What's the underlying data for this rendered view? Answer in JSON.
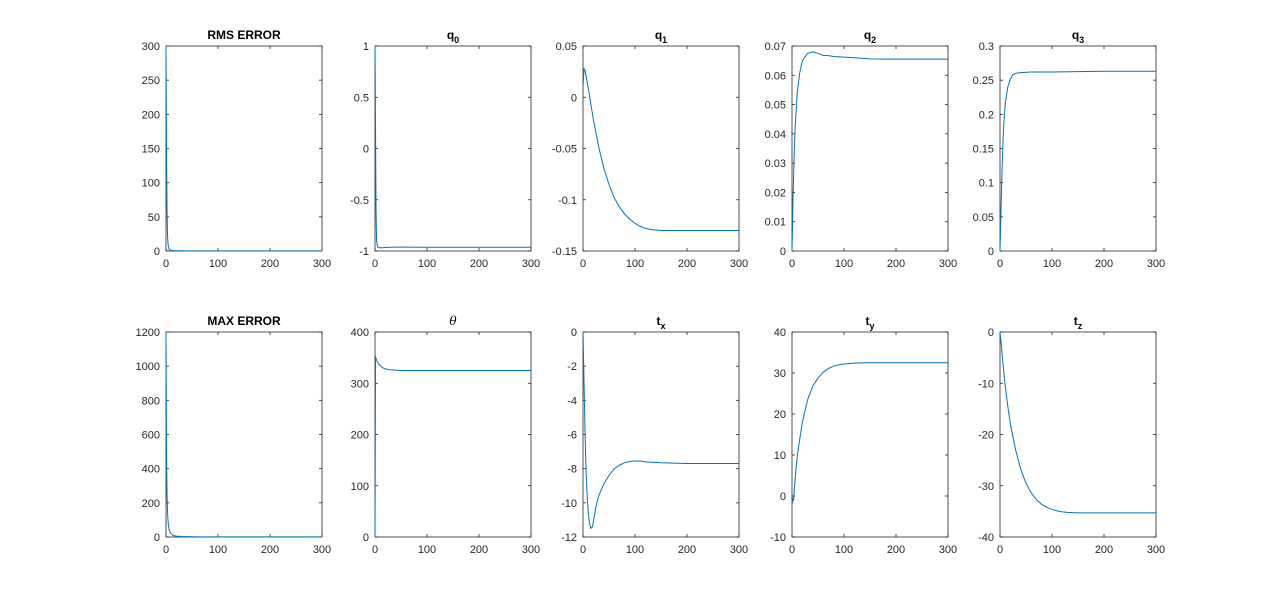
{
  "chart_data": [
    {
      "type": "line",
      "title": "RMS ERROR",
      "title_symbol": "",
      "title_subscript": "",
      "xlim": [
        0,
        300
      ],
      "ylim": [
        0,
        300
      ],
      "xticks": [
        "0",
        "100",
        "200",
        "300"
      ],
      "yticks": [
        "0",
        "50",
        "100",
        "150",
        "200",
        "250",
        "300"
      ],
      "grid": false,
      "series": [
        {
          "color": "#0072BD",
          "x": [
            0,
            1,
            2,
            3,
            4,
            5,
            6,
            8,
            10,
            15,
            20,
            30,
            40,
            60,
            100,
            200,
            300
          ],
          "y": [
            300,
            150,
            60,
            22,
            10,
            5,
            3,
            1.5,
            1,
            0.6,
            0.4,
            0.3,
            0.2,
            0.2,
            0.2,
            0.2,
            0.2
          ]
        }
      ]
    },
    {
      "type": "line",
      "title": "q",
      "title_symbol": "",
      "title_subscript": "0",
      "xlim": [
        0,
        300
      ],
      "ylim": [
        -1,
        1
      ],
      "xticks": [
        "0",
        "100",
        "200",
        "300"
      ],
      "yticks": [
        "-1",
        "-0.5",
        "0",
        "0.5",
        "1"
      ],
      "grid": false,
      "series": [
        {
          "color": "#0072BD",
          "x": [
            0,
            1,
            2,
            3,
            5,
            10,
            20,
            40,
            60,
            100,
            200,
            300
          ],
          "y": [
            1,
            0.2,
            -0.6,
            -0.9,
            -0.96,
            -0.97,
            -0.965,
            -0.962,
            -0.962,
            -0.963,
            -0.963,
            -0.963
          ]
        }
      ]
    },
    {
      "type": "line",
      "title": "q",
      "title_symbol": "",
      "title_subscript": "1",
      "xlim": [
        0,
        300
      ],
      "ylim": [
        -0.15,
        0.05
      ],
      "xticks": [
        "0",
        "100",
        "200",
        "300"
      ],
      "yticks": [
        "-0.15",
        "-0.1",
        "-0.05",
        "0",
        "0.05"
      ],
      "grid": false,
      "series": [
        {
          "color": "#0072BD",
          "x": [
            0,
            2,
            4,
            8,
            12,
            20,
            30,
            40,
            50,
            60,
            70,
            80,
            90,
            100,
            110,
            120,
            130,
            150,
            200,
            300
          ],
          "y": [
            0.01,
            0.028,
            0.026,
            0.015,
            0.003,
            -0.022,
            -0.048,
            -0.069,
            -0.085,
            -0.098,
            -0.107,
            -0.114,
            -0.119,
            -0.123,
            -0.126,
            -0.128,
            -0.129,
            -0.13,
            -0.13,
            -0.13
          ]
        }
      ]
    },
    {
      "type": "line",
      "title": "q",
      "title_symbol": "",
      "title_subscript": "2",
      "xlim": [
        0,
        300
      ],
      "ylim": [
        0,
        0.07
      ],
      "xticks": [
        "0",
        "100",
        "200",
        "300"
      ],
      "yticks": [
        "0",
        "0.01",
        "0.02",
        "0.03",
        "0.04",
        "0.05",
        "0.06",
        "0.07"
      ],
      "grid": false,
      "series": [
        {
          "color": "#0072BD",
          "x": [
            0,
            2,
            4,
            6,
            10,
            15,
            20,
            30,
            40,
            50,
            60,
            70,
            80,
            100,
            120,
            150,
            200,
            300
          ],
          "y": [
            0,
            0.018,
            0.032,
            0.042,
            0.054,
            0.061,
            0.065,
            0.0675,
            0.068,
            0.0675,
            0.0668,
            0.0667,
            0.0664,
            0.0662,
            0.066,
            0.0656,
            0.0655,
            0.0655
          ]
        }
      ]
    },
    {
      "type": "line",
      "title": "q",
      "title_symbol": "",
      "title_subscript": "3",
      "xlim": [
        0,
        300
      ],
      "ylim": [
        0,
        0.3
      ],
      "xticks": [
        "0",
        "100",
        "200",
        "300"
      ],
      "yticks": [
        "0",
        "0.05",
        "0.1",
        "0.15",
        "0.2",
        "0.25",
        "0.3"
      ],
      "grid": false,
      "series": [
        {
          "color": "#0072BD",
          "x": [
            0,
            2,
            4,
            6,
            8,
            10,
            15,
            20,
            25,
            30,
            40,
            60,
            100,
            200,
            300
          ],
          "y": [
            0,
            0.06,
            0.12,
            0.165,
            0.195,
            0.215,
            0.24,
            0.252,
            0.258,
            0.26,
            0.261,
            0.262,
            0.262,
            0.263,
            0.263
          ]
        }
      ]
    },
    {
      "type": "line",
      "title": "MAX ERROR",
      "title_symbol": "",
      "title_subscript": "",
      "xlim": [
        0,
        300
      ],
      "ylim": [
        0,
        1200
      ],
      "xticks": [
        "0",
        "100",
        "200",
        "300"
      ],
      "yticks": [
        "0",
        "200",
        "400",
        "600",
        "800",
        "1000",
        "1200"
      ],
      "grid": false,
      "series": [
        {
          "color": "#0072BD",
          "x": [
            0,
            1,
            2,
            3,
            4,
            5,
            6,
            8,
            10,
            12,
            15,
            20,
            30,
            40,
            60,
            100,
            200,
            300
          ],
          "y": [
            1200,
            500,
            250,
            140,
            90,
            60,
            45,
            28,
            18,
            13,
            8,
            5,
            3,
            2,
            1,
            1,
            1,
            1
          ]
        }
      ]
    },
    {
      "type": "line",
      "title": "",
      "title_symbol": "θ",
      "title_subscript": "",
      "xlim": [
        0,
        300
      ],
      "ylim": [
        0,
        400
      ],
      "xticks": [
        "0",
        "100",
        "200",
        "300"
      ],
      "yticks": [
        "0",
        "100",
        "200",
        "300",
        "400"
      ],
      "grid": false,
      "series": [
        {
          "color": "#0072BD",
          "x": [
            0,
            1,
            2,
            4,
            6,
            10,
            15,
            20,
            30,
            50,
            100,
            200,
            300
          ],
          "y": [
            0,
            352,
            348,
            343,
            339,
            334,
            330,
            328,
            326,
            325,
            325,
            325,
            325
          ]
        }
      ]
    },
    {
      "type": "line",
      "title": "t",
      "title_symbol": "",
      "title_subscript": "x",
      "xlim": [
        0,
        300
      ],
      "ylim": [
        -12,
        0
      ],
      "xticks": [
        "0",
        "100",
        "200",
        "300"
      ],
      "yticks": [
        "-12",
        "-10",
        "-8",
        "-6",
        "-4",
        "-2",
        "0"
      ],
      "grid": false,
      "series": [
        {
          "color": "#0072BD",
          "x": [
            0,
            2,
            4,
            6,
            8,
            10,
            12,
            15,
            18,
            20,
            25,
            30,
            40,
            50,
            60,
            70,
            80,
            90,
            100,
            110,
            120,
            150,
            200,
            300
          ],
          "y": [
            0,
            -3,
            -6,
            -8.2,
            -9.6,
            -10.5,
            -11.1,
            -11.5,
            -11.4,
            -11.1,
            -10.2,
            -9.6,
            -8.9,
            -8.4,
            -8.0,
            -7.8,
            -7.65,
            -7.58,
            -7.55,
            -7.55,
            -7.6,
            -7.65,
            -7.7,
            -7.7
          ]
        }
      ]
    },
    {
      "type": "line",
      "title": "t",
      "title_symbol": "",
      "title_subscript": "y",
      "xlim": [
        0,
        300
      ],
      "ylim": [
        -10,
        40
      ],
      "xticks": [
        "0",
        "100",
        "200",
        "300"
      ],
      "yticks": [
        "-10",
        "0",
        "10",
        "20",
        "30",
        "40"
      ],
      "grid": false,
      "series": [
        {
          "color": "#0072BD",
          "x": [
            0,
            1,
            2,
            3,
            4,
            6,
            8,
            10,
            15,
            20,
            30,
            40,
            50,
            60,
            70,
            80,
            90,
            100,
            120,
            140,
            160,
            200,
            300
          ],
          "y": [
            -2,
            -1.5,
            -0.5,
            -1,
            1,
            4,
            7,
            9.5,
            14,
            18,
            23.5,
            26.8,
            28.8,
            30.2,
            31.1,
            31.7,
            32.0,
            32.2,
            32.4,
            32.5,
            32.5,
            32.5,
            32.5
          ]
        }
      ]
    },
    {
      "type": "line",
      "title": "t",
      "title_symbol": "",
      "title_subscript": "z",
      "xlim": [
        0,
        300
      ],
      "ylim": [
        -40,
        0
      ],
      "xticks": [
        "0",
        "100",
        "200",
        "300"
      ],
      "yticks": [
        "-40",
        "-30",
        "-20",
        "-10",
        "0"
      ],
      "grid": false,
      "series": [
        {
          "color": "#0072BD",
          "x": [
            0,
            1,
            3,
            5,
            10,
            15,
            20,
            30,
            40,
            50,
            60,
            70,
            80,
            90,
            100,
            110,
            120,
            130,
            150,
            200,
            300
          ],
          "y": [
            0,
            -1,
            -3,
            -5.5,
            -10.5,
            -14.5,
            -18,
            -23,
            -26.8,
            -29.5,
            -31.4,
            -32.7,
            -33.6,
            -34.2,
            -34.6,
            -34.9,
            -35.1,
            -35.2,
            -35.3,
            -35.3,
            -35.3
          ]
        }
      ]
    }
  ]
}
